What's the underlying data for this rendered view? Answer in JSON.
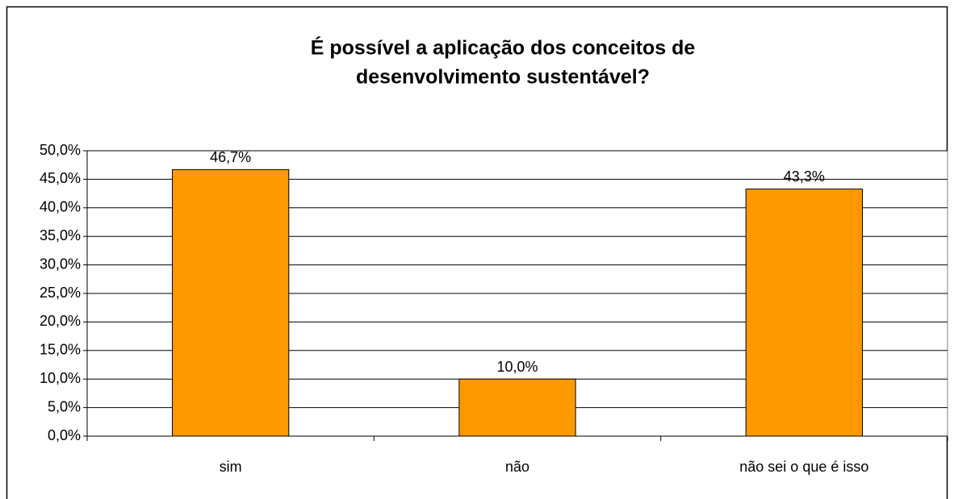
{
  "chart_data": {
    "type": "bar",
    "title": [
      "É possível a aplicação dos conceitos de",
      "desenvolvimento sustentável?"
    ],
    "categories": [
      "sim",
      "não",
      "não sei o que é isso"
    ],
    "values": [
      46.7,
      10.0,
      43.3
    ],
    "value_labels": [
      "46,7%",
      "10,0%",
      "43,3%"
    ],
    "color": "#ff9900",
    "ylim": [
      0,
      50
    ],
    "yticks": [
      {
        "value": 0,
        "label": "0,0%"
      },
      {
        "value": 5,
        "label": "5,0%"
      },
      {
        "value": 10,
        "label": "10,0%"
      },
      {
        "value": 15,
        "label": "15,0%"
      },
      {
        "value": 20,
        "label": "20,0%"
      },
      {
        "value": 25,
        "label": "25,0%"
      },
      {
        "value": 30,
        "label": "30,0%"
      },
      {
        "value": 35,
        "label": "35,0%"
      },
      {
        "value": 40,
        "label": "40,0%"
      },
      {
        "value": 45,
        "label": "45,0%"
      },
      {
        "value": 50,
        "label": "50,0%"
      }
    ],
    "grid": true
  }
}
